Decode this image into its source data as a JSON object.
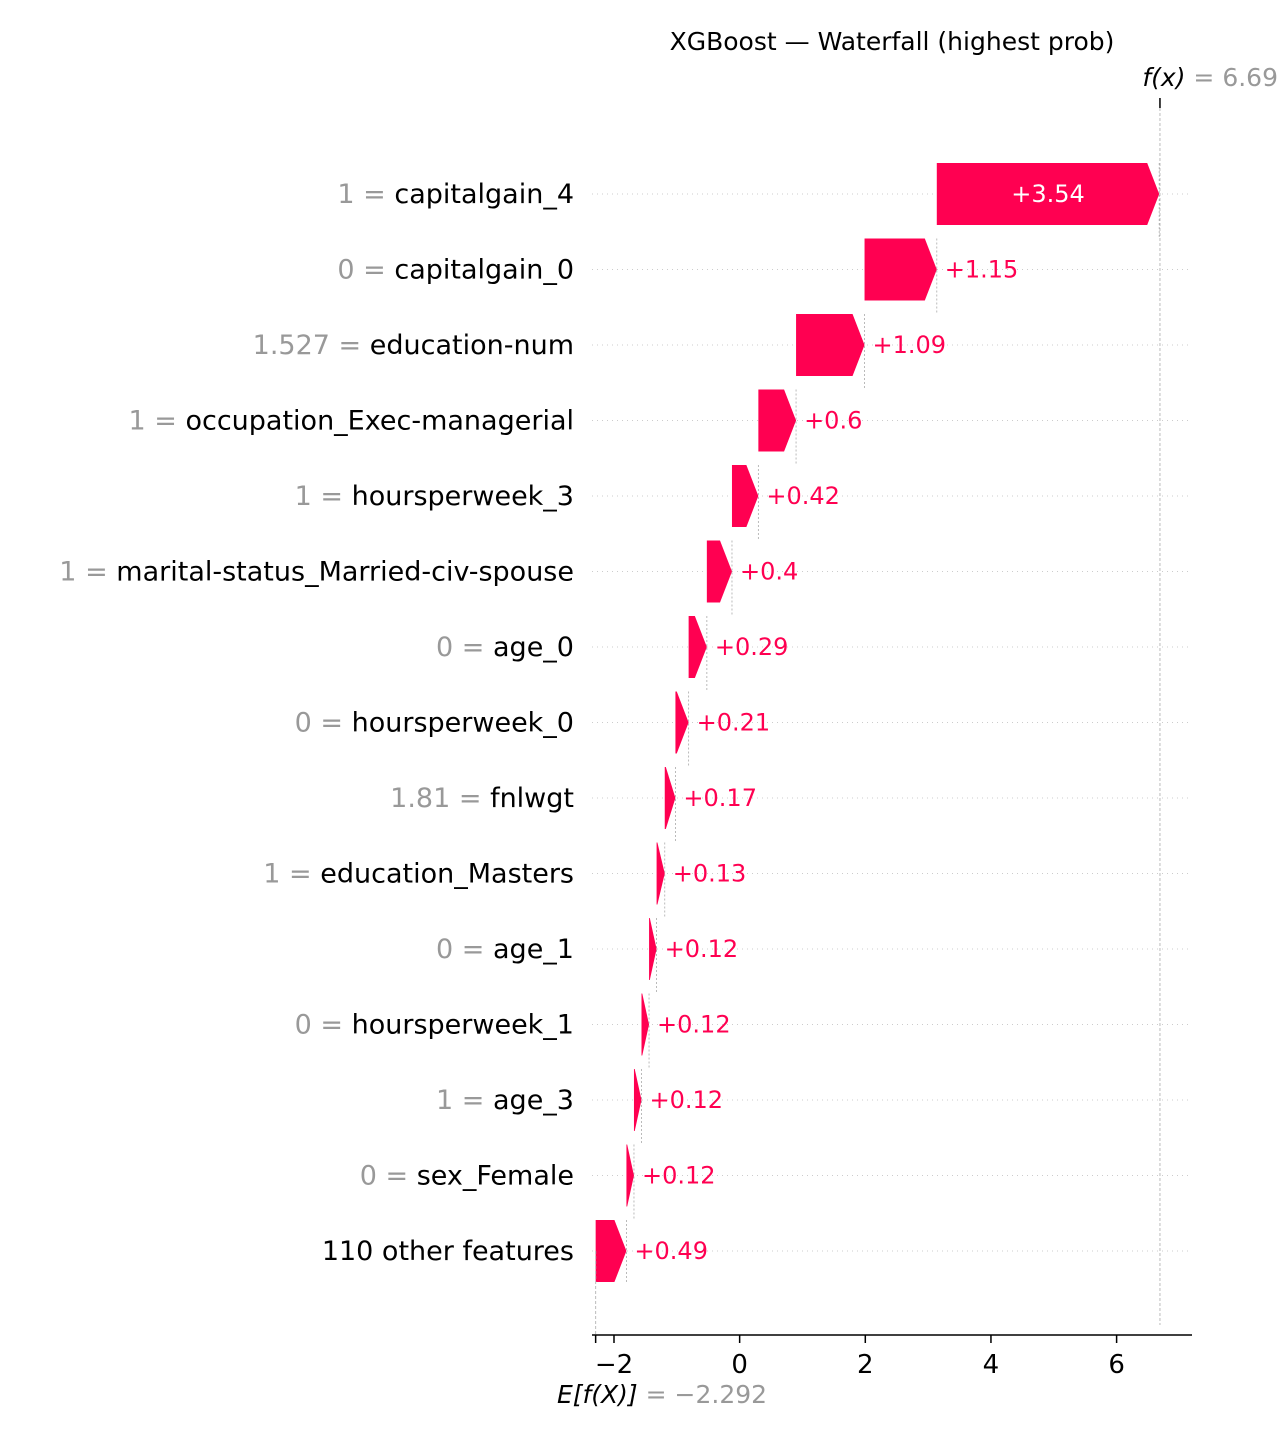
{
  "chart_data": {
    "type": "waterfall",
    "title": "XGBoost — Waterfall (highest prob)",
    "fx_label": "f(x)",
    "fx_value": "6.69",
    "fx_numeric": 6.69,
    "base_label": "E[f(X)]",
    "base_value": "−2.292",
    "base_numeric": -2.292,
    "xlim": [
      -2.35,
      7.2
    ],
    "x_ticks": [
      {
        "value": -2,
        "label": "−2"
      },
      {
        "value": 0,
        "label": "0"
      },
      {
        "value": 2,
        "label": "2"
      },
      {
        "value": 4,
        "label": "4"
      },
      {
        "value": 6,
        "label": "6"
      }
    ],
    "features": [
      {
        "value": "1",
        "name": "capitalgain_4",
        "contribution": 3.54,
        "label": "+3.54"
      },
      {
        "value": "0",
        "name": "capitalgain_0",
        "contribution": 1.15,
        "label": "+1.15"
      },
      {
        "value": "1.527",
        "name": "education-num",
        "contribution": 1.09,
        "label": "+1.09"
      },
      {
        "value": "1",
        "name": "occupation_Exec-managerial",
        "contribution": 0.6,
        "label": "+0.6"
      },
      {
        "value": "1",
        "name": "hoursperweek_3",
        "contribution": 0.42,
        "label": "+0.42"
      },
      {
        "value": "1",
        "name": "marital-status_Married-civ-spouse",
        "contribution": 0.4,
        "label": "+0.4"
      },
      {
        "value": "0",
        "name": "age_0",
        "contribution": 0.29,
        "label": "+0.29"
      },
      {
        "value": "0",
        "name": "hoursperweek_0",
        "contribution": 0.21,
        "label": "+0.21"
      },
      {
        "value": "1.81",
        "name": "fnlwgt",
        "contribution": 0.17,
        "label": "+0.17"
      },
      {
        "value": "1",
        "name": "education_Masters",
        "contribution": 0.13,
        "label": "+0.13"
      },
      {
        "value": "0",
        "name": "age_1",
        "contribution": 0.12,
        "label": "+0.12"
      },
      {
        "value": "0",
        "name": "hoursperweek_1",
        "contribution": 0.12,
        "label": "+0.12"
      },
      {
        "value": "1",
        "name": "age_3",
        "contribution": 0.12,
        "label": "+0.12"
      },
      {
        "value": "0",
        "name": "sex_Female",
        "contribution": 0.12,
        "label": "+0.12"
      },
      {
        "value": "",
        "name": "110 other features",
        "contribution": 0.49,
        "label": "+0.49"
      }
    ],
    "colors": {
      "positive": "#ff0051",
      "feature_value": "#999999",
      "text": "#000000",
      "grid": "#cccccc"
    }
  }
}
